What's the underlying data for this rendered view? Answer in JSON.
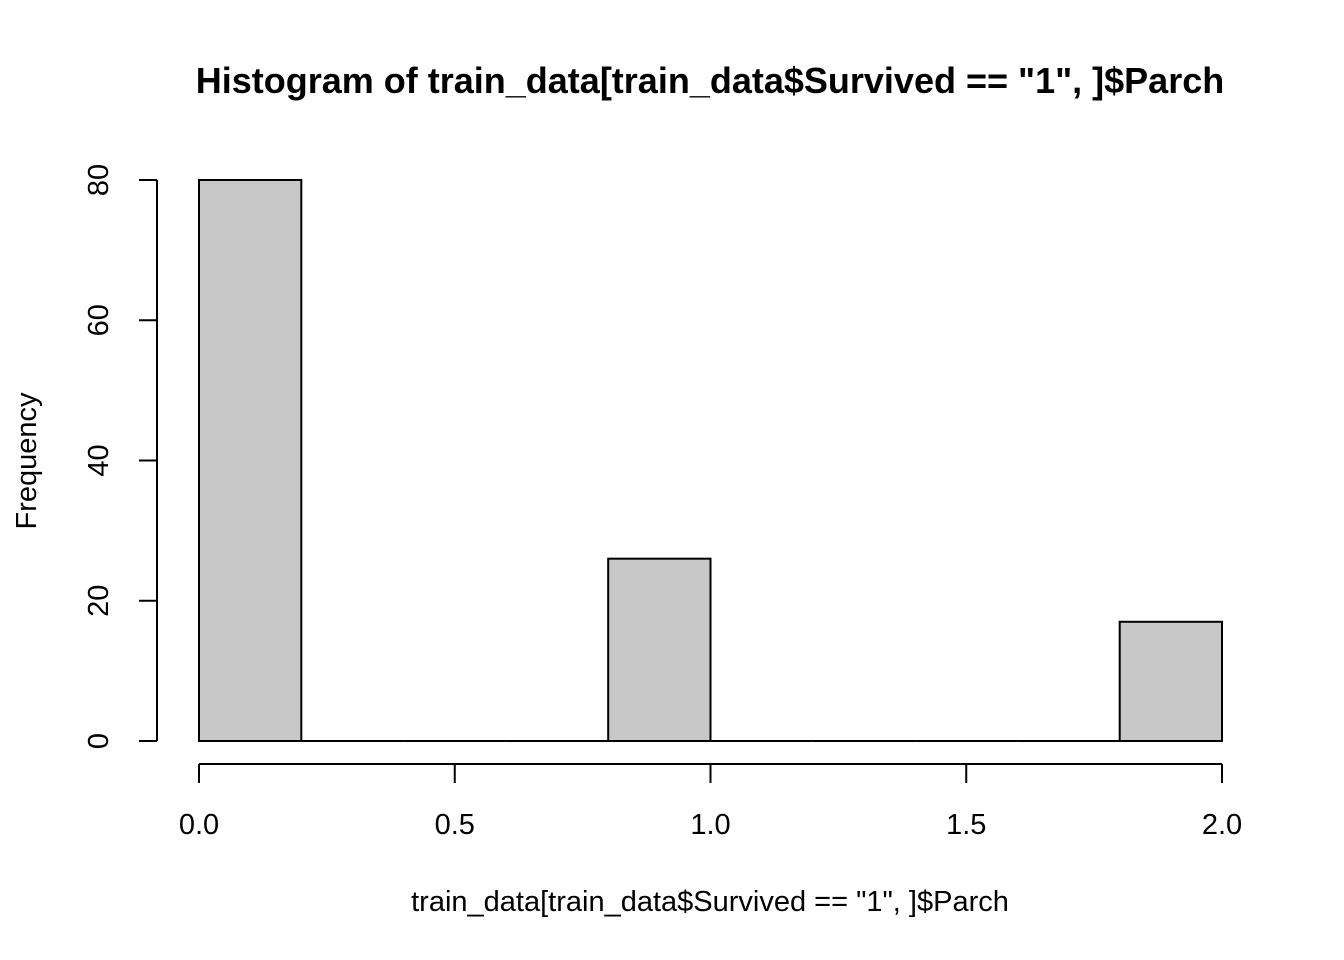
{
  "chart_data": {
    "type": "bar",
    "subtype": "histogram",
    "title": "Histogram of train_data[train_data$Survived == \"1\", ]$Parch",
    "xlabel": "train_data[train_data$Survived == \"1\", ]$Parch",
    "ylabel": "Frequency",
    "bins": [
      {
        "x0": 0.0,
        "x1": 0.2,
        "count": 80
      },
      {
        "x0": 0.2,
        "x1": 0.4,
        "count": 0
      },
      {
        "x0": 0.4,
        "x1": 0.6,
        "count": 0
      },
      {
        "x0": 0.6,
        "x1": 0.8,
        "count": 0
      },
      {
        "x0": 0.8,
        "x1": 1.0,
        "count": 26
      },
      {
        "x0": 1.0,
        "x1": 1.2,
        "count": 0
      },
      {
        "x0": 1.2,
        "x1": 1.4,
        "count": 0
      },
      {
        "x0": 1.4,
        "x1": 1.6,
        "count": 0
      },
      {
        "x0": 1.6,
        "x1": 1.8,
        "count": 0
      },
      {
        "x0": 1.8,
        "x1": 2.0,
        "count": 17
      }
    ],
    "xlim": [
      0,
      2
    ],
    "ylim": [
      0,
      80
    ],
    "xticks": [
      0.0,
      0.5,
      1.0,
      1.5,
      2.0
    ],
    "xtick_labels": [
      "0.0",
      "0.5",
      "1.0",
      "1.5",
      "2.0"
    ],
    "yticks": [
      0,
      20,
      40,
      60,
      80
    ],
    "ytick_labels": [
      "0",
      "20",
      "40",
      "60",
      "80"
    ],
    "bar_color": "#c8c8c8",
    "grid": false,
    "legend": "none"
  }
}
